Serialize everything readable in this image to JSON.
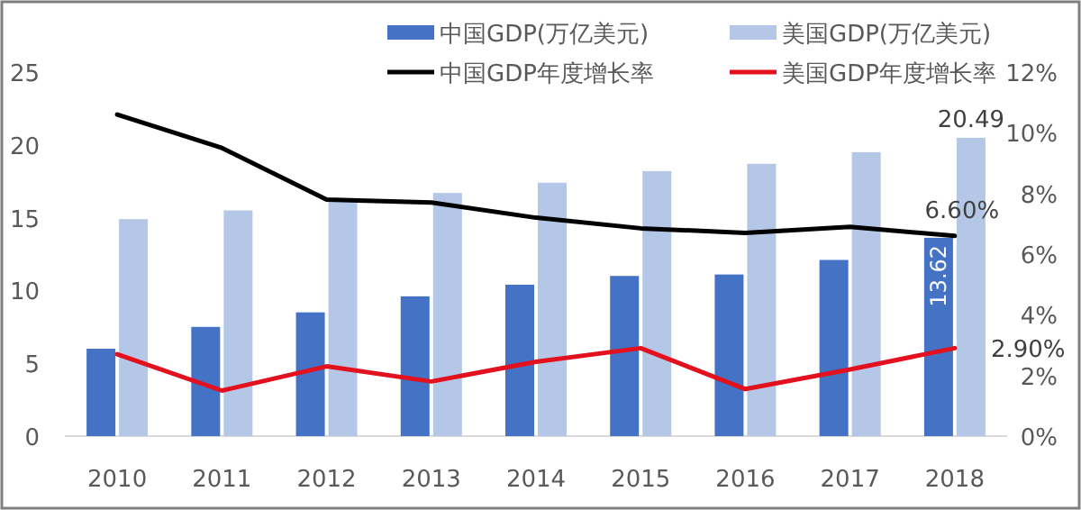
{
  "chart_data": {
    "type": "bar",
    "categories": [
      "2010",
      "2011",
      "2012",
      "2013",
      "2014",
      "2015",
      "2016",
      "2017",
      "2018"
    ],
    "series": [
      {
        "name": "中国GDP(万亿美元)",
        "color": "#4472c4",
        "values": [
          6.0,
          7.5,
          8.5,
          9.6,
          10.4,
          11.0,
          11.1,
          12.1,
          13.62
        ],
        "value_labels": [
          null,
          null,
          null,
          null,
          null,
          null,
          null,
          null,
          "13.62"
        ]
      },
      {
        "name": "美国GDP(万亿美元)",
        "color": "#b4c7e7",
        "values": [
          14.9,
          15.5,
          16.3,
          16.7,
          17.4,
          18.2,
          18.7,
          19.5,
          20.49
        ],
        "value_labels": [
          null,
          null,
          null,
          null,
          null,
          null,
          null,
          null,
          "20.49"
        ]
      },
      {
        "name": "中国GDP年度增长率",
        "type": "line",
        "axis": "y2",
        "color": "#000000",
        "values": [
          10.6,
          9.5,
          7.8,
          7.7,
          7.2,
          6.85,
          6.7,
          6.9,
          6.6
        ],
        "value_labels": [
          null,
          null,
          null,
          null,
          null,
          null,
          null,
          null,
          "6.60%"
        ]
      },
      {
        "name": "美国GDP年度增长率",
        "type": "line",
        "axis": "y2",
        "color": "#e3101e",
        "values": [
          2.7,
          1.5,
          2.3,
          1.8,
          2.45,
          2.9,
          1.55,
          2.2,
          2.9
        ],
        "value_labels": [
          null,
          null,
          null,
          null,
          null,
          null,
          null,
          null,
          "2.90%"
        ]
      }
    ],
    "ylim": [
      0,
      25
    ],
    "yticks": [
      0,
      5,
      10,
      15,
      20,
      25
    ],
    "y2lim": [
      0,
      12
    ],
    "y2ticks": [
      {
        "value": 0,
        "label": "0%"
      },
      {
        "value": 2,
        "label": "2%"
      },
      {
        "value": 4,
        "label": "4%"
      },
      {
        "value": 6,
        "label": "6%"
      },
      {
        "value": 8,
        "label": "8%"
      },
      {
        "value": 10,
        "label": "10%"
      },
      {
        "value": 12,
        "label": "12%"
      }
    ],
    "legend": "top",
    "grid": false
  }
}
